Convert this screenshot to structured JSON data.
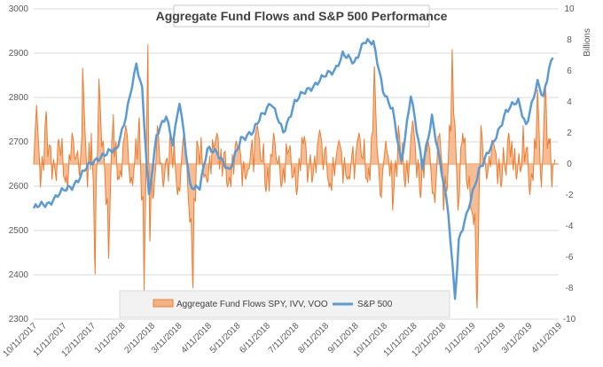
{
  "chart_data": {
    "type": "line",
    "title": "Aggregate Fund Flows and S&P 500 Performance",
    "y_left": {
      "range": [
        2300,
        3000
      ],
      "ticks": [
        "3000",
        "2900",
        "2800",
        "2700",
        "2600",
        "2500",
        "2400",
        "2300"
      ]
    },
    "y_right": {
      "label": "Billions",
      "range": [
        -10,
        10
      ],
      "ticks": [
        "10",
        "8",
        "6",
        "4",
        "2",
        "0",
        "-2",
        "-4",
        "-6",
        "-8",
        "-10"
      ]
    },
    "x": {
      "ticks": [
        "10/11/2017",
        "11/11/2017",
        "12/11/2017",
        "1/11/2018",
        "2/11/2018",
        "3/11/2018",
        "4/11/2018",
        "5/11/2018",
        "6/11/2018",
        "7/11/2018",
        "8/11/2018",
        "9/11/2018",
        "10/11/2018",
        "11/11/2018",
        "12/11/2018",
        "1/11/2019",
        "2/11/2019",
        "3/11/2019",
        "4/11/2019"
      ]
    },
    "grid": "horizontal",
    "legend_position": "bottom",
    "series": [
      {
        "name": "Aggregate Fund Flows SPY, IVV, VOO",
        "type": "area",
        "axis": "right",
        "color": "#ED7D31",
        "fill": "#F4B183",
        "anchors": [
          {
            "x": "10/11/2017",
            "v": 0
          },
          {
            "x": "10/14/2017",
            "v": 3.8
          },
          {
            "x": "10/18/2017",
            "v": -1.5
          },
          {
            "x": "10/24/2017",
            "v": 3.4
          },
          {
            "x": "10/30/2017",
            "v": -1.0
          },
          {
            "x": "11/6/2017",
            "v": 1.6
          },
          {
            "x": "11/13/2017",
            "v": -1.2
          },
          {
            "x": "11/20/2017",
            "v": 2.0
          },
          {
            "x": "11/28/2017",
            "v": -0.8
          },
          {
            "x": "12/1/2017",
            "v": 6.2
          },
          {
            "x": "12/6/2017",
            "v": -1.5
          },
          {
            "x": "12/10/2017",
            "v": 2.0
          },
          {
            "x": "12/14/2017",
            "v": -7.1
          },
          {
            "x": "12/18/2017",
            "v": 5.5
          },
          {
            "x": "12/23/2017",
            "v": 1.0
          },
          {
            "x": "12/28/2017",
            "v": -6.1
          },
          {
            "x": "1/2/2018",
            "v": 3.2
          },
          {
            "x": "1/8/2018",
            "v": -1.0
          },
          {
            "x": "1/15/2018",
            "v": 2.5
          },
          {
            "x": "1/22/2018",
            "v": -1.4
          },
          {
            "x": "1/29/2018",
            "v": 3.0
          },
          {
            "x": "2/3/2018",
            "v": -8.2
          },
          {
            "x": "2/7/2018",
            "v": 7.7
          },
          {
            "x": "2/9/2018",
            "v": -5.0
          },
          {
            "x": "2/13/2018",
            "v": -2.0
          },
          {
            "x": "2/17/2018",
            "v": 2.5
          },
          {
            "x": "2/23/2018",
            "v": -1.5
          },
          {
            "x": "3/2/2018",
            "v": 2.0
          },
          {
            "x": "3/10/2018",
            "v": -2.0
          },
          {
            "x": "3/16/2018",
            "v": 1.8
          },
          {
            "x": "3/22/2018",
            "v": -3.0
          },
          {
            "x": "3/26/2018",
            "v": -8.0
          },
          {
            "x": "3/30/2018",
            "v": 1.5
          },
          {
            "x": "4/10/2018",
            "v": -1.2
          },
          {
            "x": "4/20/2018",
            "v": 2.0
          },
          {
            "x": "5/1/2018",
            "v": -1.5
          },
          {
            "x": "5/10/2018",
            "v": 1.5
          },
          {
            "x": "5/20/2018",
            "v": -1.0
          },
          {
            "x": "6/1/2018",
            "v": 2.5
          },
          {
            "x": "6/10/2018",
            "v": -1.8
          },
          {
            "x": "6/18/2018",
            "v": 2.0
          },
          {
            "x": "6/26/2018",
            "v": -1.5
          },
          {
            "x": "7/5/2018",
            "v": 1.2
          },
          {
            "x": "7/12/2018",
            "v": -2.0
          },
          {
            "x": "7/20/2018",
            "v": 1.8
          },
          {
            "x": "7/28/2018",
            "v": -1.2
          },
          {
            "x": "8/5/2018",
            "v": 2.2
          },
          {
            "x": "8/15/2018",
            "v": -1.5
          },
          {
            "x": "8/25/2018",
            "v": 1.5
          },
          {
            "x": "9/5/2018",
            "v": -1.0
          },
          {
            "x": "9/15/2018",
            "v": 2.0
          },
          {
            "x": "9/24/2018",
            "v": -1.2
          },
          {
            "x": "10/1/2018",
            "v": 6.3
          },
          {
            "x": "10/7/2018",
            "v": -2.0
          },
          {
            "x": "10/13/2018",
            "v": 1.5
          },
          {
            "x": "10/20/2018",
            "v": -3.0
          },
          {
            "x": "10/26/2018",
            "v": 2.5
          },
          {
            "x": "11/2/2018",
            "v": -1.5
          },
          {
            "x": "11/10/2018",
            "v": 2.8
          },
          {
            "x": "11/18/2018",
            "v": -2.2
          },
          {
            "x": "11/26/2018",
            "v": 1.5
          },
          {
            "x": "12/3/2018",
            "v": -2.5
          },
          {
            "x": "12/8/2018",
            "v": 2.0
          },
          {
            "x": "12/12/2018",
            "v": -3.0
          },
          {
            "x": "12/16/2018",
            "v": -1.5
          },
          {
            "x": "12/21/2018",
            "v": 7.4
          },
          {
            "x": "12/24/2018",
            "v": 2.5
          },
          {
            "x": "12/27/2018",
            "v": -3.0
          },
          {
            "x": "1/1/2019",
            "v": 2.0
          },
          {
            "x": "1/6/2019",
            "v": -1.5
          },
          {
            "x": "1/12/2019",
            "v": -3.5
          },
          {
            "x": "1/16/2019",
            "v": -9.3
          },
          {
            "x": "1/20/2019",
            "v": 2.5
          },
          {
            "x": "1/26/2019",
            "v": -1.0
          },
          {
            "x": "2/2/2019",
            "v": 1.5
          },
          {
            "x": "2/10/2019",
            "v": -1.5
          },
          {
            "x": "2/18/2019",
            "v": 2.0
          },
          {
            "x": "2/26/2019",
            "v": -1.0
          },
          {
            "x": "3/5/2019",
            "v": 2.5
          },
          {
            "x": "3/12/2019",
            "v": -2.0
          },
          {
            "x": "3/20/2019",
            "v": 4.8
          },
          {
            "x": "3/24/2019",
            "v": -1.5
          },
          {
            "x": "3/28/2019",
            "v": 5.2
          },
          {
            "x": "4/1/2019",
            "v": 1.3
          },
          {
            "x": "4/4/2019",
            "v": -1.5
          },
          {
            "x": "4/7/2019",
            "v": 0.3
          }
        ]
      },
      {
        "name": "S&P 500",
        "type": "line",
        "axis": "left",
        "color": "#5B9BD5",
        "points": [
          {
            "x": "10/11/2017",
            "y": 2550
          },
          {
            "x": "10/25/2017",
            "y": 2560
          },
          {
            "x": "11/5/2017",
            "y": 2580
          },
          {
            "x": "11/20/2017",
            "y": 2600
          },
          {
            "x": "12/5/2017",
            "y": 2640
          },
          {
            "x": "12/20/2017",
            "y": 2670
          },
          {
            "x": "1/5/2018",
            "y": 2680
          },
          {
            "x": "1/15/2018",
            "y": 2760
          },
          {
            "x": "1/26/2018",
            "y": 2870
          },
          {
            "x": "2/1/2018",
            "y": 2820
          },
          {
            "x": "2/8/2018",
            "y": 2580
          },
          {
            "x": "2/16/2018",
            "y": 2710
          },
          {
            "x": "2/26/2018",
            "y": 2760
          },
          {
            "x": "3/5/2018",
            "y": 2700
          },
          {
            "x": "3/12/2018",
            "y": 2790
          },
          {
            "x": "3/23/2018",
            "y": 2600
          },
          {
            "x": "4/2/2018",
            "y": 2600
          },
          {
            "x": "4/10/2018",
            "y": 2680
          },
          {
            "x": "4/20/2018",
            "y": 2680
          },
          {
            "x": "5/3/2018",
            "y": 2630
          },
          {
            "x": "5/15/2018",
            "y": 2710
          },
          {
            "x": "5/28/2018",
            "y": 2720
          },
          {
            "x": "6/5/2018",
            "y": 2760
          },
          {
            "x": "6/15/2018",
            "y": 2790
          },
          {
            "x": "6/28/2018",
            "y": 2720
          },
          {
            "x": "7/10/2018",
            "y": 2790
          },
          {
            "x": "7/25/2018",
            "y": 2820
          },
          {
            "x": "8/5/2018",
            "y": 2840
          },
          {
            "x": "8/20/2018",
            "y": 2860
          },
          {
            "x": "8/29/2018",
            "y": 2900
          },
          {
            "x": "9/10/2018",
            "y": 2875
          },
          {
            "x": "9/20/2018",
            "y": 2930
          },
          {
            "x": "9/30/2018",
            "y": 2920
          },
          {
            "x": "10/10/2018",
            "y": 2820
          },
          {
            "x": "10/20/2018",
            "y": 2770
          },
          {
            "x": "10/29/2018",
            "y": 2650
          },
          {
            "x": "11/8/2018",
            "y": 2810
          },
          {
            "x": "11/20/2018",
            "y": 2640
          },
          {
            "x": "11/30/2018",
            "y": 2760
          },
          {
            "x": "12/10/2018",
            "y": 2630
          },
          {
            "x": "12/17/2018",
            "y": 2540
          },
          {
            "x": "12/24/2018",
            "y": 2350
          },
          {
            "x": "12/28/2018",
            "y": 2480
          },
          {
            "x": "1/5/2019",
            "y": 2530
          },
          {
            "x": "1/18/2019",
            "y": 2640
          },
          {
            "x": "2/1/2019",
            "y": 2690
          },
          {
            "x": "2/15/2019",
            "y": 2770
          },
          {
            "x": "2/28/2019",
            "y": 2790
          },
          {
            "x": "3/8/2019",
            "y": 2740
          },
          {
            "x": "3/20/2019",
            "y": 2830
          },
          {
            "x": "3/26/2019",
            "y": 2800
          },
          {
            "x": "4/1/2019",
            "y": 2870
          },
          {
            "x": "4/5/2019",
            "y": 2890
          }
        ]
      }
    ]
  }
}
